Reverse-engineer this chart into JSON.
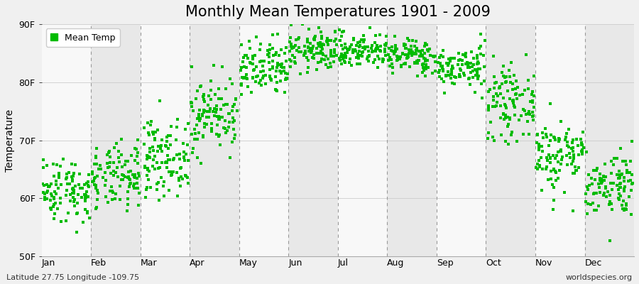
{
  "title": "Monthly Mean Temperatures 1901 - 2009",
  "ylabel": "Temperature",
  "ylim": [
    50,
    90
  ],
  "yticks": [
    50,
    60,
    70,
    80,
    90
  ],
  "ytick_labels": [
    "50F",
    "60F",
    "70F",
    "80F",
    "90F"
  ],
  "months": [
    "Jan",
    "Feb",
    "Mar",
    "Apr",
    "May",
    "Jun",
    "Jul",
    "Aug",
    "Sep",
    "Oct",
    "Nov",
    "Dec"
  ],
  "dot_color": "#00bb00",
  "legend_label": "Mean Temp",
  "bg_color": "#f0f0f0",
  "stripe_light": "#f8f8f8",
  "stripe_dark": "#e8e8e8",
  "footer_left": "Latitude 27.75 Longitude -109.75",
  "footer_right": "worldspecies.org",
  "title_fontsize": 15,
  "axis_fontsize": 10,
  "tick_fontsize": 9,
  "footer_fontsize": 8,
  "num_years": 109,
  "monthly_means": [
    61.5,
    63.5,
    67.0,
    74.5,
    82.0,
    85.5,
    85.5,
    84.5,
    82.5,
    76.5,
    67.5,
    62.5
  ],
  "monthly_stds": [
    2.8,
    2.8,
    3.2,
    3.2,
    2.5,
    1.8,
    1.5,
    1.5,
    1.8,
    3.0,
    3.2,
    2.8
  ],
  "seed": 42
}
